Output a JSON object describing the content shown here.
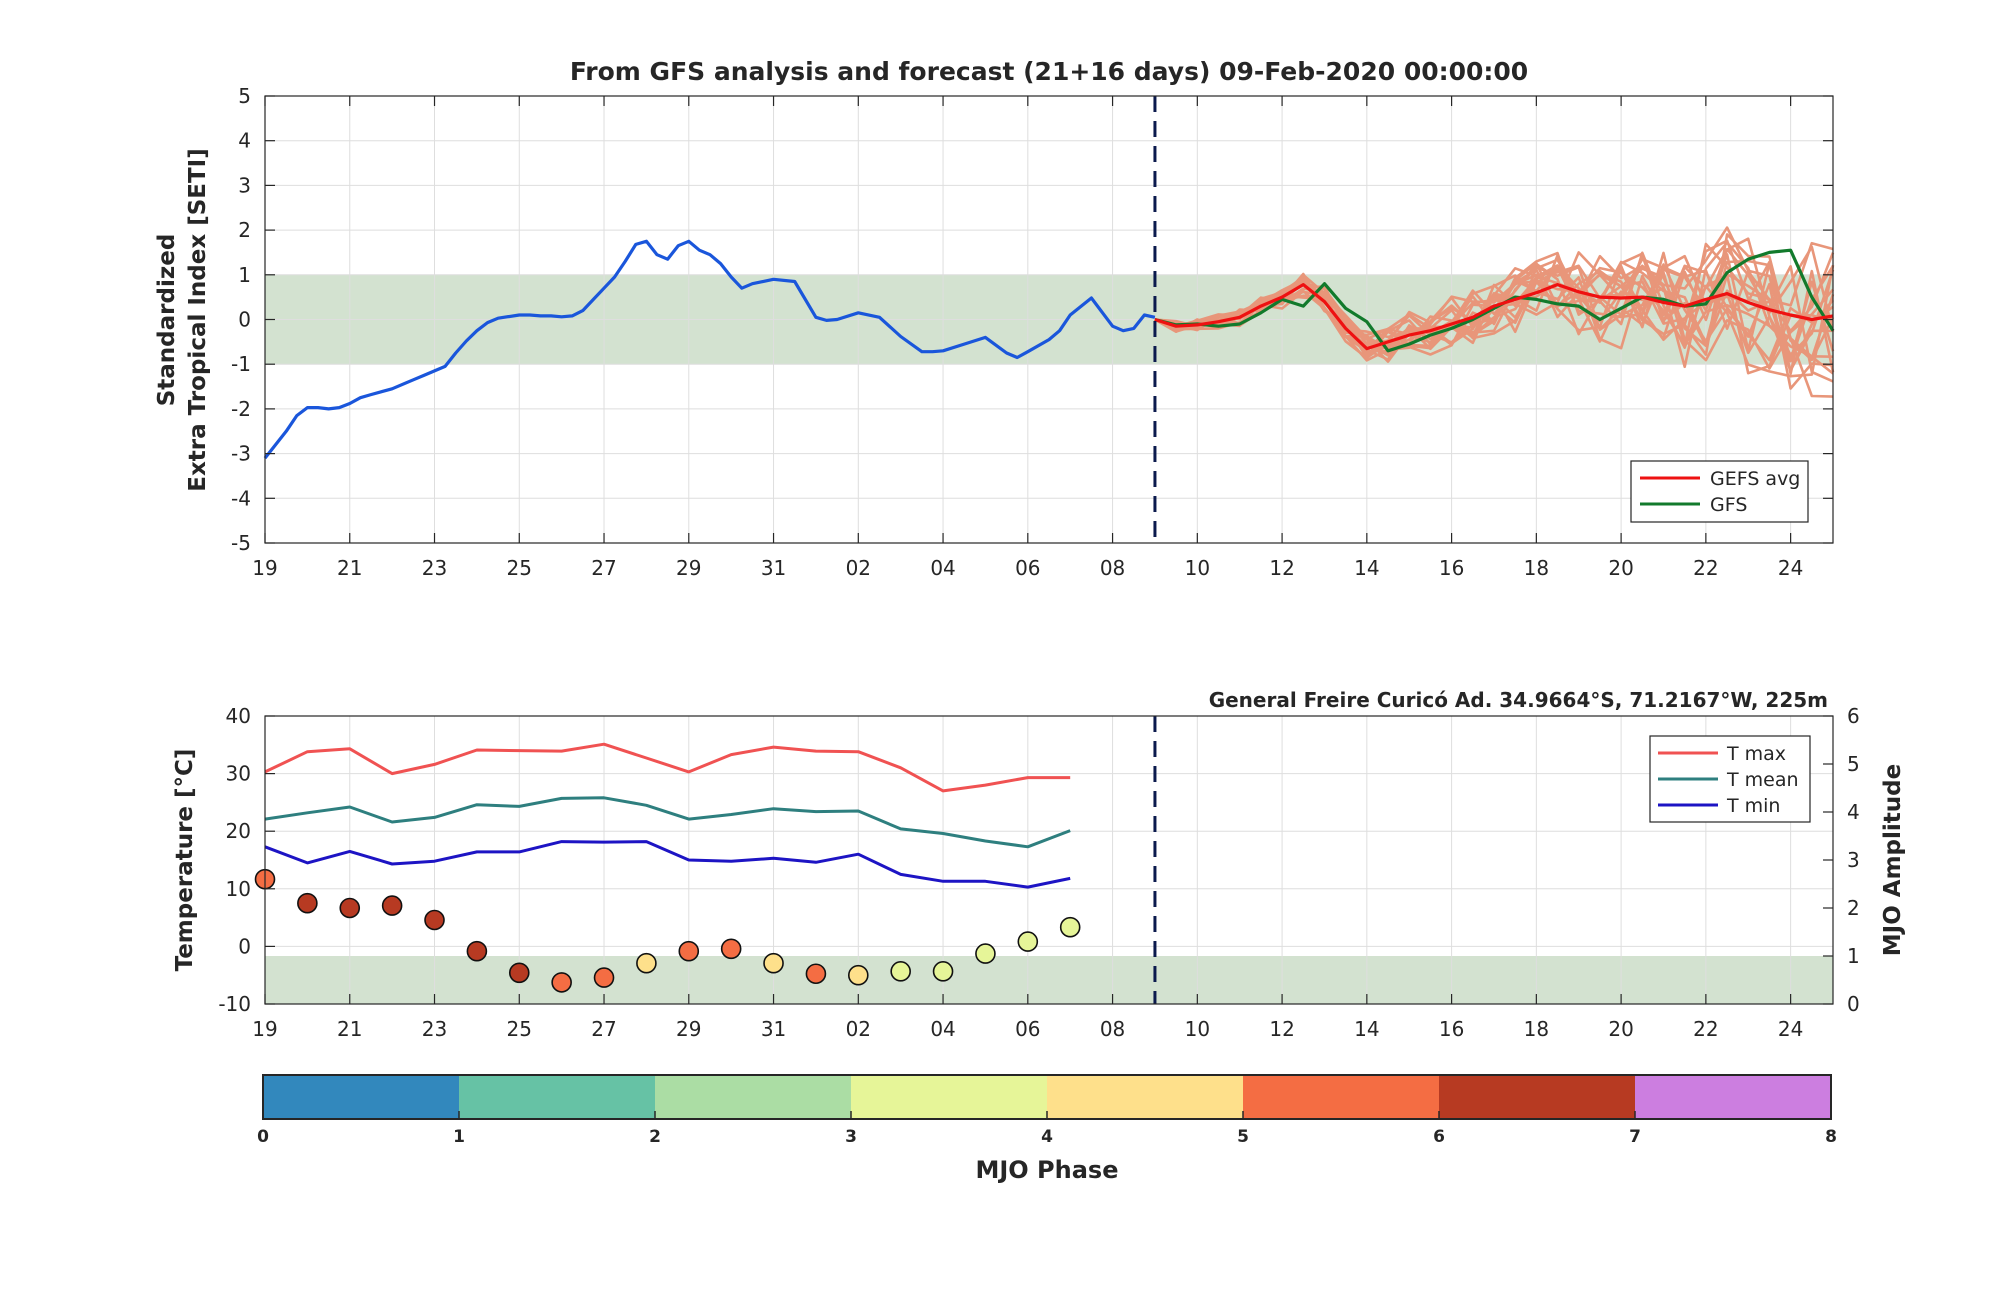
{
  "chart_data": [
    {
      "type": "line",
      "title": "From GFS analysis and forecast (21+16 days) 09-Feb-2020 00:00:00",
      "ylabel_line1": "Standardized",
      "ylabel_line2": "Extra Tropical Index [SETI]",
      "ylim": [
        -5,
        5
      ],
      "yticks": [
        5,
        4,
        3,
        2,
        1,
        0,
        -1,
        -2,
        -3,
        -4,
        -5
      ],
      "x_range_days": [
        0,
        37
      ],
      "xtick_labels": [
        "19",
        "21",
        "23",
        "25",
        "27",
        "29",
        "31",
        "02",
        "04",
        "06",
        "08",
        "10",
        "12",
        "14",
        "16",
        "18",
        "20",
        "22",
        "24"
      ],
      "band": [
        -1,
        1
      ],
      "analysis_end_day": 21,
      "grid": true,
      "legend_position": "bottom-right",
      "legend": [
        "GEFS avg",
        "GFS"
      ],
      "colors": {
        "analysis": "#1a56db",
        "gefs_avg": "#ee1111",
        "gfs": "#127a2c",
        "members": "#e8967a",
        "band": "#d3e2d0",
        "divider": "#0b1a4d"
      },
      "series": [
        {
          "name": "",
          "role": "analysis",
          "x": [
            0,
            0.5,
            0.75,
            1,
            1.25,
            1.5,
            1.75,
            2,
            2.25,
            2.5,
            3,
            3.5,
            3.75,
            4,
            4.25,
            4.5,
            4.75,
            5,
            5.25,
            5.5,
            6,
            6.25,
            6.5,
            6.75,
            7,
            7.25,
            7.5,
            7.75,
            8,
            8.25,
            8.5,
            8.75,
            9,
            9.25,
            9.5,
            9.75,
            10,
            10.25,
            10.5,
            10.75,
            11,
            11.25,
            11.5,
            12,
            12.5,
            13,
            13.25,
            13.5,
            14,
            14.5,
            15,
            15.5,
            15.75,
            16,
            16.5,
            17,
            17.5,
            17.75,
            18,
            18.5,
            18.75,
            19,
            19.5,
            20,
            20.25,
            20.5,
            20.75,
            21
          ],
          "y": [
            -3.1,
            -2.5,
            -2.15,
            -1.97,
            -1.97,
            -2.0,
            -1.97,
            -1.88,
            -1.75,
            -1.68,
            -1.55,
            -1.35,
            -1.25,
            -1.15,
            -1.05,
            -0.75,
            -0.48,
            -0.25,
            -0.07,
            0.03,
            0.1,
            0.1,
            0.08,
            0.08,
            0.06,
            0.08,
            0.2,
            0.45,
            0.7,
            0.95,
            1.3,
            1.68,
            1.75,
            1.45,
            1.35,
            1.65,
            1.75,
            1.55,
            1.45,
            1.25,
            0.95,
            0.7,
            0.8,
            0.9,
            0.85,
            0.05,
            -0.02,
            0.0,
            0.15,
            0.05,
            -0.38,
            -0.72,
            -0.72,
            -0.7,
            -0.55,
            -0.4,
            -0.75,
            -0.85,
            -0.72,
            -0.45,
            -0.25,
            0.1,
            0.48,
            -0.15,
            -0.25,
            -0.2,
            0.1,
            0.05
          ]
        },
        {
          "name": "GEFS avg",
          "x": [
            21,
            21.5,
            22,
            22.5,
            23,
            23.5,
            24,
            24.5,
            25,
            25.5,
            26,
            26.5,
            27,
            27.5,
            28,
            28.5,
            29,
            29.5,
            30,
            30.5,
            31,
            31.5,
            32,
            32.5,
            33,
            33.5,
            34,
            34.5,
            35,
            35.5,
            36,
            36.5,
            37
          ],
          "y": [
            0,
            -0.15,
            -0.12,
            -0.05,
            0.05,
            0.3,
            0.5,
            0.78,
            0.4,
            -0.2,
            -0.65,
            -0.5,
            -0.35,
            -0.25,
            -0.1,
            0.05,
            0.3,
            0.45,
            0.6,
            0.78,
            0.62,
            0.5,
            0.48,
            0.5,
            0.38,
            0.3,
            0.45,
            0.58,
            0.38,
            0.22,
            0.1,
            0.0,
            0.08
          ]
        },
        {
          "name": "GFS",
          "x": [
            21,
            21.5,
            22,
            22.5,
            23,
            23.5,
            24,
            24.5,
            25,
            25.5,
            26,
            26.5,
            27,
            27.5,
            28,
            28.5,
            29,
            29.5,
            30,
            30.5,
            31,
            31.5,
            32,
            32.5,
            33,
            33.5,
            34,
            34.5,
            35,
            35.5,
            36,
            36.5,
            37
          ],
          "y": [
            0,
            -0.12,
            -0.1,
            -0.15,
            -0.1,
            0.15,
            0.45,
            0.3,
            0.8,
            0.25,
            -0.05,
            -0.7,
            -0.55,
            -0.35,
            -0.2,
            0.0,
            0.25,
            0.5,
            0.45,
            0.35,
            0.3,
            0.0,
            0.25,
            0.5,
            0.45,
            0.3,
            0.35,
            1.05,
            1.35,
            1.5,
            1.55,
            0.5,
            -0.25
          ]
        }
      ],
      "ensemble_member_count": 20
    },
    {
      "type": "line",
      "title": "General Freire Curicó Ad. 34.9664°S, 71.2167°W, 225m",
      "ylabel": "Temperature [°C]",
      "y2label": "MJO Amplitude",
      "ylim": [
        -10,
        40
      ],
      "yticks": [
        40,
        30,
        20,
        10,
        0,
        -10
      ],
      "y2lim": [
        0,
        6
      ],
      "y2ticks": [
        6,
        5,
        4,
        3,
        2,
        1,
        0
      ],
      "x_range_days": [
        0,
        37
      ],
      "xtick_labels": [
        "19",
        "21",
        "23",
        "25",
        "27",
        "29",
        "31",
        "02",
        "04",
        "06",
        "08",
        "10",
        "12",
        "14",
        "16",
        "18",
        "20",
        "22",
        "24"
      ],
      "band_y2": [
        0,
        1
      ],
      "grid": true,
      "legend_position": "top-right",
      "legend": [
        "T max",
        "T mean",
        "T min"
      ],
      "x": [
        0,
        1,
        2,
        3,
        4,
        5,
        6,
        7,
        8,
        9,
        10,
        11,
        12,
        13,
        14,
        15,
        16,
        17,
        18,
        19
      ],
      "series": [
        {
          "name": "T max",
          "color": "#f05252",
          "values": [
            30.3,
            33.8,
            34.3,
            30.0,
            31.6,
            34.1,
            34.0,
            33.9,
            35.1,
            32.7,
            30.3,
            33.3,
            34.6,
            33.9,
            33.8,
            31.0,
            27.0,
            28.0,
            29.3,
            29.3
          ]
        },
        {
          "name": "T mean",
          "color": "#2e7f7f",
          "values": [
            22.1,
            23.2,
            24.2,
            21.6,
            22.4,
            24.6,
            24.3,
            25.7,
            25.8,
            24.5,
            22.1,
            22.9,
            23.9,
            23.4,
            23.5,
            20.4,
            19.6,
            18.3,
            17.3,
            20.1
          ]
        },
        {
          "name": "T min",
          "color": "#1d14c4",
          "values": [
            17.3,
            14.5,
            16.5,
            14.3,
            14.8,
            16.4,
            16.4,
            18.2,
            18.1,
            18.2,
            15.0,
            14.8,
            15.3,
            14.6,
            16.0,
            12.5,
            11.3,
            11.3,
            10.3,
            11.8
          ]
        }
      ],
      "mjo": {
        "x": [
          0,
          1,
          2,
          3,
          4,
          5,
          6,
          7,
          8,
          9,
          10,
          11,
          12,
          13,
          14,
          15,
          16,
          17,
          18,
          19
        ],
        "amplitude": [
          2.6,
          2.1,
          2.0,
          2.05,
          1.75,
          1.1,
          0.65,
          0.45,
          0.55,
          0.85,
          1.1,
          1.15,
          0.85,
          0.63,
          0.6,
          0.68,
          0.68,
          1.05,
          1.3,
          1.6
        ],
        "phase": [
          5,
          6,
          6,
          6,
          6,
          6,
          6,
          5,
          5,
          4,
          5,
          5,
          4,
          5,
          4,
          3,
          3,
          3,
          3,
          3
        ]
      }
    },
    {
      "type": "colorbar",
      "label": "MJO Phase",
      "ticks": [
        "0",
        "1",
        "2",
        "3",
        "4",
        "5",
        "6",
        "7",
        "8"
      ],
      "colors": [
        "#3288bd",
        "#66c2a5",
        "#abdda4",
        "#e6f598",
        "#fee08b",
        "#f46d43",
        "#b73a22",
        "#cc7ee0"
      ]
    }
  ]
}
